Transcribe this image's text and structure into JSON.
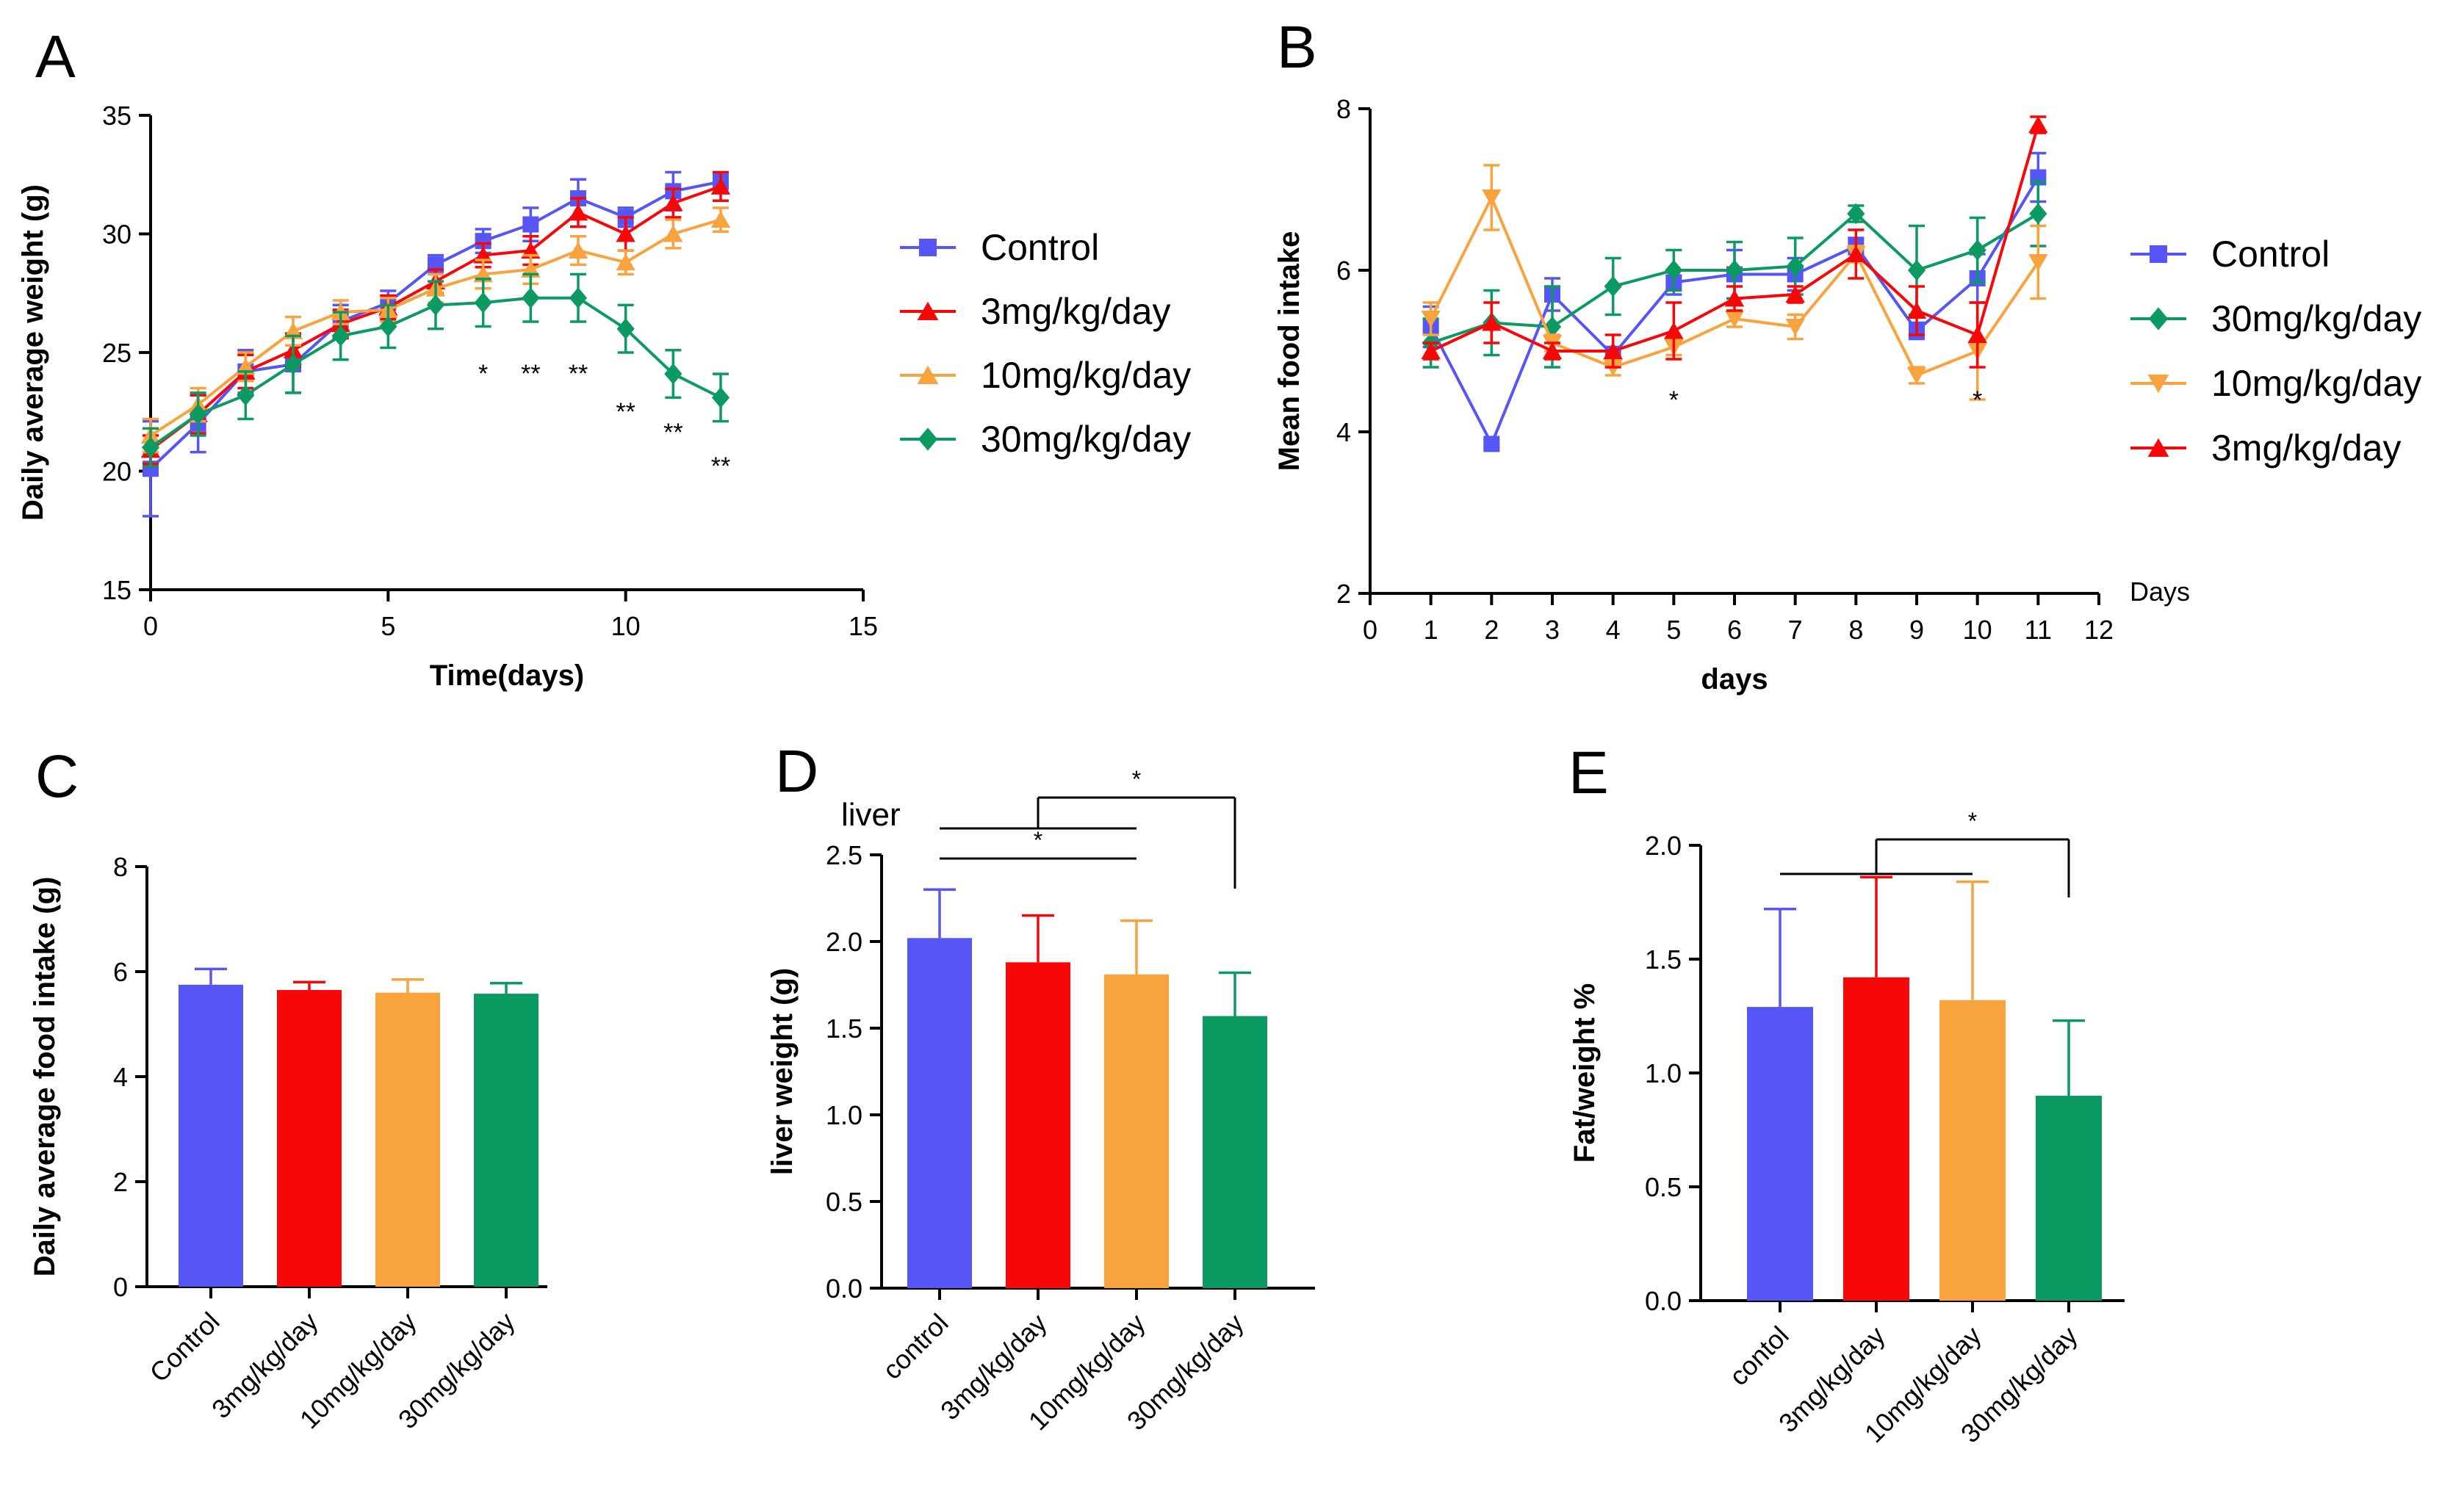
{
  "colors": {
    "control": "#5656f6",
    "d3": "#f70707",
    "d10": "#f9a33f",
    "d30": "#0c9a63",
    "axis": "#000000"
  },
  "chart_data": [
    {
      "panel": "A",
      "type": "line",
      "xlabel": "Time(days)",
      "ylabel": "Daily average weight (g)",
      "xlim": [
        0,
        15
      ],
      "ylim": [
        15,
        35
      ],
      "xticks": [
        "0",
        "5",
        "10",
        "15"
      ],
      "yticks": [
        "15",
        "20",
        "25",
        "30",
        "35"
      ],
      "x": [
        0,
        1,
        2,
        3,
        4,
        5,
        6,
        7,
        8,
        9,
        10,
        11,
        12
      ],
      "series": [
        {
          "name": "Control",
          "color": "#5656f6",
          "marker": "square",
          "values": [
            20.1,
            22.0,
            24.2,
            24.5,
            26.3,
            27.1,
            28.7,
            29.7,
            30.4,
            31.5,
            30.7,
            31.8,
            32.2
          ],
          "errors": [
            2.0,
            1.2,
            0.9,
            1.2,
            0.7,
            0.5,
            0.4,
            0.5,
            0.7,
            0.8,
            0.4,
            0.8,
            0.3
          ]
        },
        {
          "name": "3mg/kg/day",
          "color": "#f70707",
          "marker": "triangle-up",
          "values": [
            20.9,
            22.4,
            24.2,
            25.1,
            26.2,
            26.9,
            28.0,
            29.1,
            29.3,
            30.9,
            30.0,
            31.3,
            32.0
          ],
          "errors": [
            0.6,
            0.8,
            0.7,
            0.7,
            0.6,
            0.5,
            0.5,
            0.5,
            0.6,
            0.6,
            0.7,
            0.6,
            0.6
          ]
        },
        {
          "name": "10mg/kg/day",
          "color": "#f9a33f",
          "marker": "triangle-up",
          "values": [
            21.5,
            22.8,
            24.4,
            25.9,
            26.7,
            26.8,
            27.7,
            28.3,
            28.5,
            29.3,
            28.8,
            30.0,
            30.6
          ],
          "errors": [
            0.7,
            0.7,
            0.6,
            0.6,
            0.5,
            0.5,
            0.6,
            0.6,
            0.6,
            0.6,
            0.5,
            0.6,
            0.5
          ]
        },
        {
          "name": "30mg/kg/day",
          "color": "#0c9a63",
          "marker": "diamond",
          "values": [
            21.0,
            22.4,
            23.2,
            24.5,
            25.7,
            26.1,
            27.0,
            27.1,
            27.3,
            27.3,
            26.0,
            24.1,
            23.1
          ],
          "errors": [
            0.8,
            0.9,
            1.0,
            1.2,
            1.0,
            0.9,
            1.0,
            1.0,
            1.0,
            1.0,
            1.0,
            1.0,
            1.0
          ]
        }
      ],
      "annotations": [
        {
          "x": 7,
          "label": "*"
        },
        {
          "x": 8,
          "label": "**"
        },
        {
          "x": 9,
          "label": "**"
        },
        {
          "x": 10,
          "label": "**"
        },
        {
          "x": 11,
          "label": "**"
        },
        {
          "x": 12,
          "label": "**"
        }
      ]
    },
    {
      "panel": "B",
      "type": "line",
      "xlabel": "days",
      "ylabel": "Mean food intake",
      "axis_note": "Days",
      "xlim": [
        0,
        12
      ],
      "ylim": [
        2,
        8
      ],
      "xticks": [
        "0",
        "1",
        "2",
        "3",
        "4",
        "5",
        "6",
        "7",
        "8",
        "9",
        "10",
        "11",
        "12"
      ],
      "yticks": [
        "2",
        "4",
        "6",
        "8"
      ],
      "x": [
        1,
        2,
        3,
        4,
        5,
        6,
        7,
        8,
        9,
        10,
        11
      ],
      "series": [
        {
          "name": "Control",
          "color": "#5656f6",
          "marker": "square",
          "values": [
            5.3,
            3.85,
            5.7,
            4.95,
            5.85,
            5.95,
            5.95,
            6.3,
            5.25,
            5.9,
            7.15
          ],
          "errors": [
            0.25,
            0.05,
            0.2,
            0.1,
            0.15,
            0.3,
            0.2,
            0.1,
            0.1,
            0.3,
            0.3
          ]
        },
        {
          "name": "30mg/kg/day",
          "color": "#0c9a63",
          "marker": "diamond",
          "values": [
            5.1,
            5.35,
            5.3,
            5.8,
            6.0,
            6.0,
            6.05,
            6.7,
            6.0,
            6.25,
            6.7
          ],
          "errors": [
            0.3,
            0.4,
            0.5,
            0.35,
            0.25,
            0.35,
            0.35,
            0.1,
            0.55,
            0.4,
            0.4
          ]
        },
        {
          "name": "10mg/kg/day",
          "color": "#f9a33f",
          "marker": "triangle-down",
          "values": [
            5.4,
            6.9,
            5.1,
            4.8,
            5.05,
            5.4,
            5.3,
            6.2,
            4.7,
            5.0,
            6.1
          ],
          "errors": [
            0.2,
            0.4,
            0.1,
            0.1,
            0.1,
            0.1,
            0.15,
            0.1,
            0.1,
            0.6,
            0.45
          ]
        },
        {
          "name": "3mg/kg/day",
          "color": "#f70707",
          "marker": "triangle-up",
          "values": [
            5.0,
            5.35,
            5.0,
            5.0,
            5.25,
            5.65,
            5.7,
            6.2,
            5.5,
            5.2,
            7.8
          ],
          "errors": [
            0.1,
            0.25,
            0.1,
            0.2,
            0.35,
            0.15,
            0.1,
            0.3,
            0.3,
            0.4,
            0.1
          ]
        }
      ],
      "annotations": [
        {
          "x": 5,
          "label": "*"
        },
        {
          "x": 10,
          "label": "*"
        }
      ]
    },
    {
      "panel": "C",
      "type": "bar",
      "ylabel": "Daily average food intake (g)",
      "ylim": [
        0,
        8
      ],
      "yticks": [
        "0",
        "2",
        "4",
        "6",
        "8"
      ],
      "categories": [
        "Control",
        "3mg/kg/day",
        "10mg/kg/day",
        "30mg/kg/day"
      ],
      "values": [
        5.75,
        5.65,
        5.6,
        5.58
      ],
      "errors": [
        0.3,
        0.15,
        0.25,
        0.2
      ],
      "colors": [
        "#5656f6",
        "#f70707",
        "#f9a33f",
        "#0c9a63"
      ]
    },
    {
      "panel": "D",
      "type": "bar",
      "title": "liver",
      "ylabel": "liver weight (g)",
      "ylim": [
        0,
        2.5
      ],
      "yticks": [
        "0.0",
        "0.5",
        "1.0",
        "1.5",
        "2.0",
        "2.5"
      ],
      "categories": [
        "control",
        "3mg/kg/day",
        "10mg/kg/day",
        "30mg/kg/day"
      ],
      "values": [
        2.02,
        1.88,
        1.81,
        1.57
      ],
      "errors": [
        0.28,
        0.27,
        0.31,
        0.25
      ],
      "colors": [
        "#5656f6",
        "#f70707",
        "#f9a33f",
        "#0c9a63"
      ],
      "significance": [
        {
          "label": "*",
          "from": [
            0,
            2
          ],
          "to": [
            3
          ]
        },
        {
          "label": "*",
          "from": [
            0
          ],
          "to": [
            2
          ]
        }
      ]
    },
    {
      "panel": "E",
      "type": "bar",
      "ylabel": "Fat/weight %",
      "ylim": [
        0,
        2.0
      ],
      "yticks": [
        "0.0",
        "0.5",
        "1.0",
        "1.5",
        "2.0"
      ],
      "categories": [
        "contol",
        "3mg/kg/day",
        "10mg/kg/day",
        "30mg/kg/day"
      ],
      "values": [
        1.29,
        1.42,
        1.32,
        0.9
      ],
      "errors": [
        0.43,
        0.44,
        0.52,
        0.33
      ],
      "colors": [
        "#5656f6",
        "#f70707",
        "#f9a33f",
        "#0c9a63"
      ],
      "significance": [
        {
          "label": "*",
          "from": [
            0,
            2
          ],
          "to": [
            3
          ]
        }
      ]
    }
  ]
}
